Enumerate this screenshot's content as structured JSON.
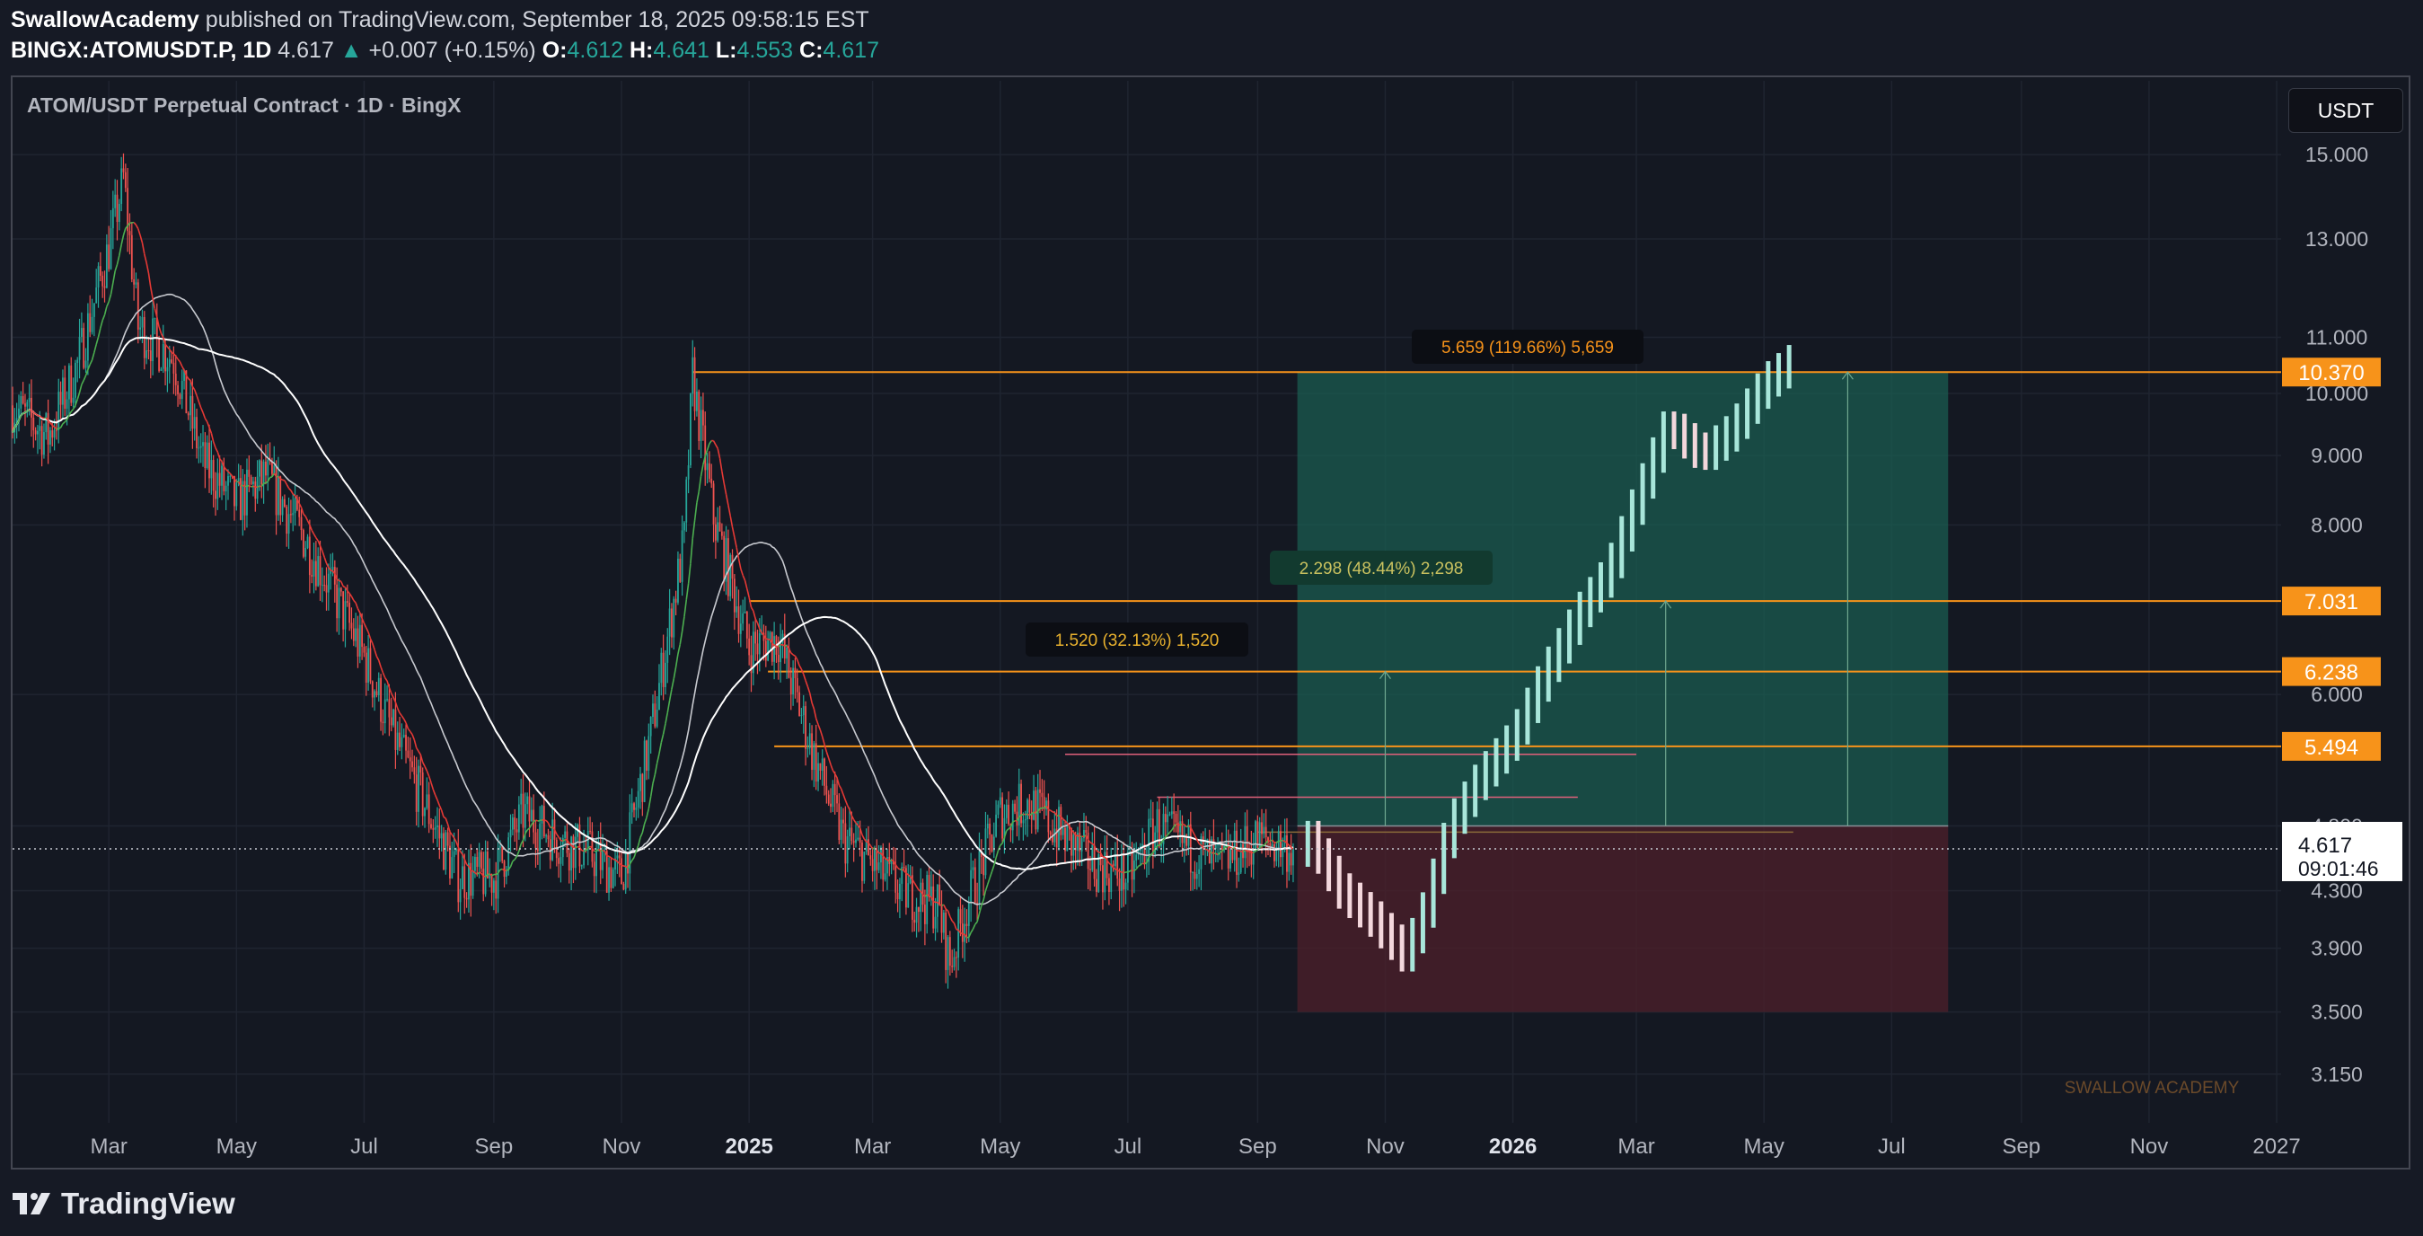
{
  "header": {
    "author": "SwallowAcademy",
    "published": "published on TradingView.com, September 18, 2025 09:58:15 EST",
    "symbol": "BINGX:ATOMUSDT.P, 1D",
    "last": "4.617",
    "change": "+0.007 (+0.15%)",
    "o_label": "O:",
    "o_value": "4.612",
    "h_label": "H:",
    "h_value": "4.641",
    "l_label": "L:",
    "l_value": "4.553",
    "c_label": "C:",
    "c_value": "4.617"
  },
  "chart_title": "ATOM/USDT Perpetual Contract · 1D · BingX",
  "currency_button": "USDT",
  "watermark": "SWALLOW ACADEMY",
  "footer_brand": "TradingView",
  "colors": {
    "up": "#26a69a",
    "down": "#ef5350",
    "orange": "#f7931a",
    "target_fill": "#1b5e52",
    "stop_fill": "#4a1f2b",
    "ema": "#ffffff",
    "fast_ma_up": "#4caf50",
    "fast_ma_down": "#e53935"
  },
  "chart_data": {
    "type": "line",
    "title": "ATOM/USDT Perpetual Contract · 1D · BingX",
    "y_scale": "log",
    "ylim": [
      2.9,
      17
    ],
    "y_ticks": [
      "15.000",
      "13.000",
      "11.000",
      "10.000",
      "9.000",
      "8.000",
      "6.000",
      "4.800",
      "4.300",
      "3.900",
      "3.500",
      "3.150"
    ],
    "x_ticks": [
      "Mar",
      "May",
      "Jul",
      "Sep",
      "Nov",
      "2025",
      "Mar",
      "May",
      "Jul",
      "Sep",
      "Nov",
      "2026",
      "Mar",
      "May",
      "Jul",
      "Sep",
      "Nov",
      "2027"
    ],
    "x_ticks_bold": [
      "2025",
      "2026"
    ],
    "last_price": 4.617,
    "last_price_label": "4.617",
    "countdown": "09:01:46",
    "historical_series": {
      "name": "",
      "x": [
        "2024-01-15",
        "2024-02-01",
        "2024-02-15",
        "2024-03-01",
        "2024-03-08",
        "2024-03-15",
        "2024-04-01",
        "2024-04-15",
        "2024-05-01",
        "2024-05-15",
        "2024-06-01",
        "2024-06-15",
        "2024-07-01",
        "2024-07-15",
        "2024-08-01",
        "2024-08-15",
        "2024-09-01",
        "2024-09-15",
        "2024-10-01",
        "2024-10-15",
        "2024-11-01",
        "2024-11-15",
        "2024-12-01",
        "2024-12-05",
        "2024-12-15",
        "2025-01-01",
        "2025-01-15",
        "2025-02-01",
        "2025-02-15",
        "2025-03-01",
        "2025-03-15",
        "2025-04-01",
        "2025-04-07",
        "2025-04-15",
        "2025-05-01",
        "2025-05-15",
        "2025-06-01",
        "2025-06-15",
        "2025-07-01",
        "2025-07-15",
        "2025-08-01",
        "2025-08-15",
        "2025-09-01",
        "2025-09-18"
      ],
      "y": [
        9.8,
        9.3,
        10.5,
        12.8,
        14.4,
        11.2,
        10.6,
        8.9,
        8.3,
        8.7,
        7.9,
        7.2,
        6.4,
        5.6,
        4.9,
        4.4,
        4.4,
        4.9,
        4.7,
        4.6,
        4.4,
        5.6,
        7.8,
        10.3,
        8.1,
        6.5,
        6.6,
        5.4,
        4.7,
        4.5,
        4.3,
        4.2,
        3.8,
        4.2,
        4.9,
        5.0,
        4.7,
        4.5,
        4.4,
        4.8,
        4.6,
        4.5,
        4.7,
        4.617
      ]
    },
    "projected_path": {
      "name": "",
      "x": [
        "2025-09-25",
        "2025-10-10",
        "2025-10-25",
        "2025-11-10",
        "2025-11-20",
        "2025-12-01",
        "2025-12-15",
        "2026-01-01",
        "2026-01-15",
        "2026-02-01",
        "2026-02-15",
        "2026-03-01",
        "2026-03-15",
        "2026-04-01",
        "2026-04-15",
        "2026-05-01",
        "2026-05-15"
      ],
      "y": [
        4.7,
        4.3,
        4.1,
        3.85,
        4.2,
        4.8,
        5.2,
        5.6,
        6.2,
        6.9,
        7.4,
        8.4,
        9.5,
        9.0,
        9.4,
        10.2,
        10.6
      ]
    },
    "horizontal_levels": [
      {
        "value": 10.37,
        "label": "10.370"
      },
      {
        "value": 7.031,
        "label": "7.031"
      },
      {
        "value": 6.238,
        "label": "6.238"
      },
      {
        "value": 5.494,
        "label": "5.494"
      }
    ],
    "position": {
      "entry": 4.8,
      "target": 10.37,
      "stop": 3.5,
      "start": "2025-09-20",
      "end": "2026-07-28"
    },
    "measure_labels": [
      {
        "text": "5.659 (119.66%) 5,659"
      },
      {
        "text": "2.298 (48.44%) 2,298"
      },
      {
        "text": "1.520 (32.13%) 1,520"
      }
    ]
  }
}
